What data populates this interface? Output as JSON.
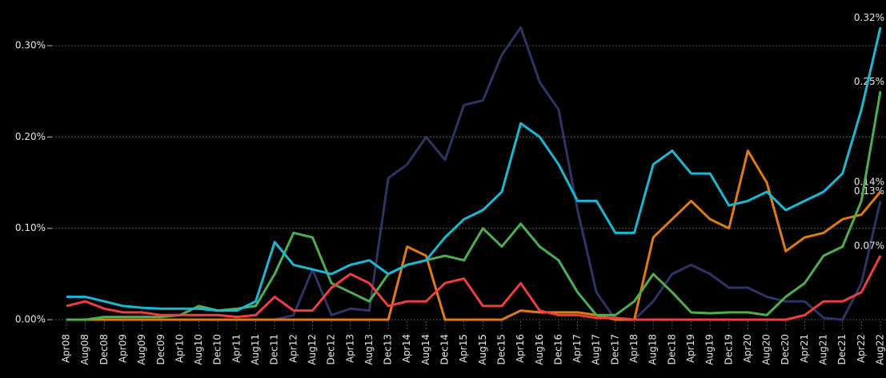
{
  "chart_data": {
    "type": "line",
    "categories": [
      "Apr08",
      "Aug08",
      "Dec08",
      "Apr09",
      "Aug09",
      "Dec09",
      "Apr10",
      "Aug10",
      "Dec10",
      "Apr11",
      "Aug11",
      "Dec11",
      "Apr12",
      "Aug12",
      "Dec12",
      "Apr13",
      "Aug13",
      "Dec13",
      "Apr14",
      "Aug14",
      "Dec14",
      "Apr15",
      "Aug15",
      "Dec15",
      "Apr16",
      "Aug16",
      "Dec16",
      "Apr17",
      "Aug17",
      "Dec17",
      "Apr18",
      "Aug18",
      "Dec18",
      "Apr19",
      "Aug19",
      "Dec19",
      "Apr20",
      "Aug20",
      "Dec20",
      "Apr21",
      "Aug21",
      "Dec21",
      "Apr22",
      "Aug22"
    ],
    "series": [
      {
        "color": "#2e3464",
        "end_label": "0.13%",
        "values": [
          0,
          0,
          0,
          0,
          0,
          0,
          0,
          0,
          0,
          0,
          0,
          0,
          0.005,
          0.055,
          0.005,
          0.012,
          0.01,
          0.155,
          0.17,
          0.2,
          0.175,
          0.235,
          0.24,
          0.29,
          0.32,
          0.26,
          0.23,
          0.12,
          0.03,
          0,
          0,
          0.02,
          0.05,
          0.06,
          0.05,
          0.035,
          0.035,
          0.025,
          0.02,
          0.02,
          0.002,
          0,
          0.04,
          0.13
        ]
      },
      {
        "color": "#e07b12",
        "end_label": "0.14%",
        "values": [
          0,
          0,
          0,
          0,
          0,
          0,
          0,
          0,
          0,
          0,
          0,
          0,
          0,
          0,
          0,
          0,
          0,
          0,
          0.08,
          0.07,
          0,
          0,
          0,
          0,
          0.01,
          0.008,
          0.008,
          0.008,
          0.005,
          0,
          0,
          0.09,
          0.11,
          0.13,
          0.11,
          0.1,
          0.185,
          0.15,
          0.075,
          0.09,
          0.095,
          0.11,
          0.115,
          0.14
        ]
      },
      {
        "color": "#4caf50",
        "end_label": "0.25%",
        "values": [
          0,
          0,
          0.003,
          0.003,
          0.003,
          0.003,
          0.005,
          0.015,
          0.01,
          0.012,
          0.015,
          0.05,
          0.095,
          0.09,
          0.04,
          0.03,
          0.02,
          0.05,
          0.06,
          0.065,
          0.07,
          0.065,
          0.1,
          0.08,
          0.105,
          0.08,
          0.065,
          0.03,
          0.005,
          0.005,
          0.02,
          0.05,
          0.03,
          0.008,
          0.007,
          0.008,
          0.008,
          0.005,
          0.025,
          0.04,
          0.07,
          0.08,
          0.13,
          0.25
        ]
      },
      {
        "color": "#f03e3e",
        "end_label": "0.07%",
        "values": [
          0.015,
          0.02,
          0.012,
          0.008,
          0.008,
          0.005,
          0.005,
          0.005,
          0.005,
          0.003,
          0.005,
          0.025,
          0.01,
          0.01,
          0.035,
          0.05,
          0.04,
          0.015,
          0.02,
          0.02,
          0.04,
          0.045,
          0.015,
          0.015,
          0.04,
          0.01,
          0.005,
          0.005,
          0.002,
          0.002,
          0,
          0,
          0,
          0,
          0,
          0,
          0,
          0,
          0,
          0.005,
          0.02,
          0.02,
          0.03,
          0.07
        ]
      },
      {
        "color": "#1ab8d4",
        "end_label": "0.32%",
        "values": [
          0.025,
          0.025,
          0.02,
          0.015,
          0.013,
          0.012,
          0.012,
          0.012,
          0.01,
          0.01,
          0.02,
          0.085,
          0.06,
          0.055,
          0.05,
          0.06,
          0.065,
          0.05,
          0.06,
          0.065,
          0.09,
          0.11,
          0.12,
          0.14,
          0.215,
          0.2,
          0.17,
          0.13,
          0.13,
          0.095,
          0.095,
          0.17,
          0.185,
          0.16,
          0.16,
          0.125,
          0.13,
          0.14,
          0.12,
          0.13,
          0.14,
          0.16,
          0.23,
          0.32
        ]
      }
    ],
    "ylim": [
      0,
      0.35
    ],
    "yticks": [
      {
        "value": 0,
        "label": "0.00%"
      },
      {
        "value": 0.1,
        "label": "0.10%"
      },
      {
        "value": 0.2,
        "label": "0.20%"
      },
      {
        "value": 0.3,
        "label": "0.30%"
      }
    ],
    "grid": true
  }
}
